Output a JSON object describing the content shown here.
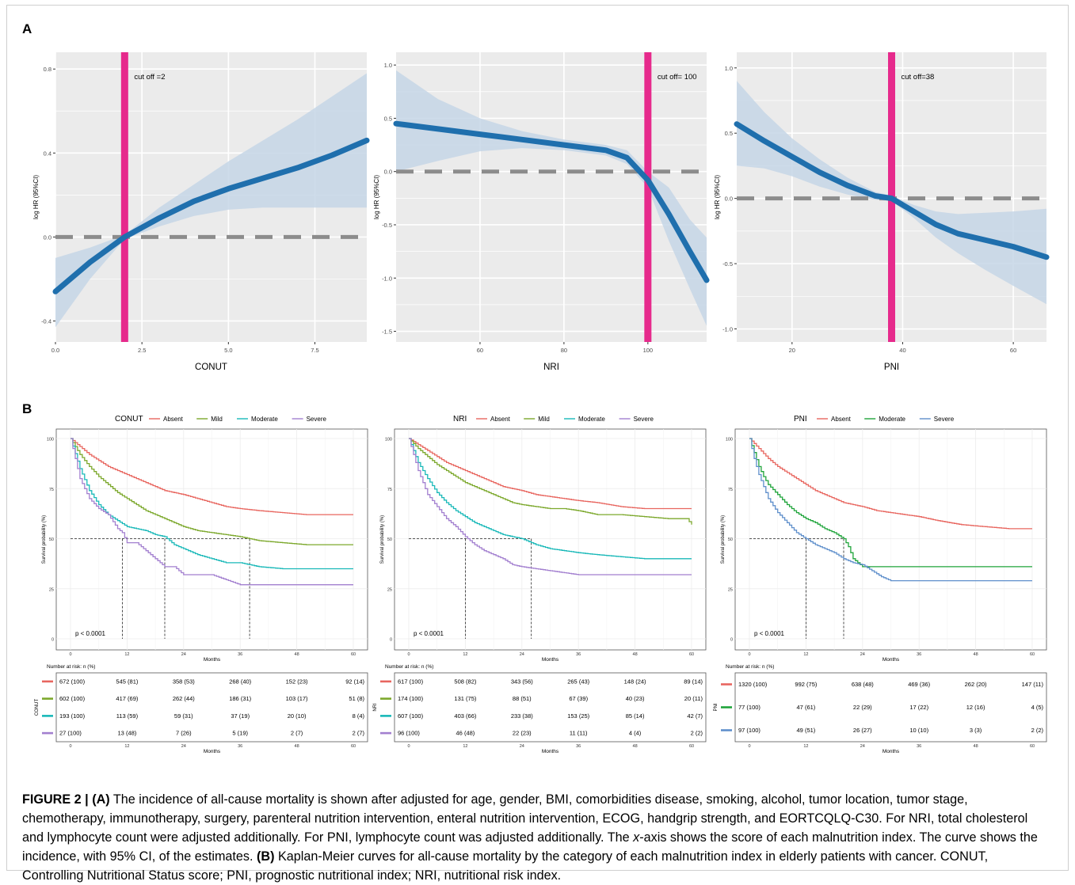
{
  "figure": {
    "panel_a_letter": "A",
    "panel_b_letter": "B",
    "caption_label": "FIGURE 2 |",
    "caption_a_tag": "(A)",
    "caption_text_1": " The incidence of all-cause mortality is shown after adjusted for age, gender, BMI, comorbidities disease, smoking, alcohol, tumor location, tumor stage, chemotherapy, immunotherapy, surgery, parenteral nutrition intervention, enteral nutrition intervention, ECOG, handgrip strength, and EORTCQLQ-C30. For NRI, total cholesterol and lymphocyte count were adjusted additionally. For PNI, lymphocyte count was adjusted additionally. The ",
    "caption_italic": "x",
    "caption_text_2": "-axis shows the score of each malnutrition index. The curve shows the incidence, with 95% CI, of the estimates. ",
    "caption_b_tag": "(B)",
    "caption_text_3": " Kaplan-Meier curves for all-cause mortality by the category of each malnutrition index in elderly patients with cancer. CONUT, Controlling Nutritional Status score; PNI, prognostic nutritional index; NRI, nutritional risk index."
  },
  "colors": {
    "panel_bg": "#ebebeb",
    "spline": "#1f6fad",
    "ci_band": "#c6d6e6",
    "cutoff": "#e62a8c",
    "reference": "#8c8c8c",
    "absent": "#e8665f",
    "mild": "#7ca82c",
    "moderate": "#18b8b8",
    "moderate_pni": "#1fa43a",
    "severe": "#a27fcf",
    "severe_pni": "#5f8fcb"
  },
  "chart_data": [
    {
      "type": "line",
      "panel": "A",
      "xlabel": "CONUT",
      "ylabel": "log HR (95%CI)",
      "xlim": [
        0,
        9
      ],
      "ylim": [
        -0.5,
        0.88
      ],
      "xticks": [
        0,
        2.5,
        5,
        7.5
      ],
      "xtick_labels": [
        "0.0",
        "2.5",
        "5.0",
        "7.5"
      ],
      "yticks": [
        -0.4,
        0,
        0.4,
        0.8
      ],
      "ytick_labels": [
        "-0.4",
        "0.0",
        "0.4",
        "0.8"
      ],
      "cutoff_x": 2,
      "cutoff_label": "cut off =2",
      "reference_y": 0,
      "series": [
        {
          "x": [
            0,
            1,
            2,
            3,
            4,
            5,
            6,
            7,
            8,
            9
          ],
          "y": [
            -0.26,
            -0.12,
            0.0,
            0.09,
            0.17,
            0.23,
            0.28,
            0.33,
            0.39,
            0.46
          ],
          "lower": [
            -0.43,
            -0.2,
            -0.01,
            0.05,
            0.1,
            0.13,
            0.14,
            0.14,
            0.14,
            0.14
          ],
          "upper": [
            -0.1,
            -0.05,
            0.01,
            0.14,
            0.25,
            0.36,
            0.46,
            0.56,
            0.67,
            0.78
          ]
        }
      ]
    },
    {
      "type": "line",
      "panel": "A",
      "xlabel": "NRI",
      "ylabel": "log HR (95%CI)",
      "xlim": [
        40,
        114
      ],
      "ylim": [
        -1.6,
        1.12
      ],
      "xticks": [
        60,
        80,
        100
      ],
      "xtick_labels": [
        "60",
        "80",
        "100"
      ],
      "yticks": [
        -1.5,
        -1.0,
        -0.5,
        0,
        0.5,
        1.0
      ],
      "ytick_labels": [
        "-1.5",
        "-1.0",
        "-0.5",
        "0.0",
        "0.5",
        "1.0"
      ],
      "cutoff_x": 100,
      "cutoff_label": "cut off= 100",
      "reference_y": 0,
      "series": [
        {
          "x": [
            40,
            50,
            60,
            70,
            80,
            90,
            95,
            100,
            105,
            110,
            114
          ],
          "y": [
            0.45,
            0.4,
            0.35,
            0.3,
            0.25,
            0.2,
            0.13,
            -0.08,
            -0.4,
            -0.75,
            -1.02
          ],
          "lower": [
            0.0,
            0.1,
            0.19,
            0.22,
            0.2,
            0.15,
            0.07,
            -0.15,
            -0.65,
            -1.1,
            -1.45
          ],
          "upper": [
            0.95,
            0.68,
            0.5,
            0.38,
            0.3,
            0.25,
            0.2,
            0.0,
            -0.15,
            -0.45,
            -0.62
          ]
        }
      ]
    },
    {
      "type": "line",
      "panel": "A",
      "xlabel": "PNI",
      "ylabel": "log HR (95%CI)",
      "xlim": [
        10,
        66
      ],
      "ylim": [
        -1.1,
        1.12
      ],
      "xticks": [
        20,
        40,
        60
      ],
      "xtick_labels": [
        "20",
        "40",
        "60"
      ],
      "yticks": [
        -1.0,
        -0.5,
        0,
        0.5,
        1.0
      ],
      "ytick_labels": [
        "-1.0",
        "-0.5",
        "0.0",
        "0.5",
        "1.0"
      ],
      "cutoff_x": 38,
      "cutoff_label": "cut off=38",
      "reference_y": 0,
      "series": [
        {
          "x": [
            10,
            15,
            20,
            25,
            30,
            35,
            38,
            42,
            46,
            50,
            55,
            60,
            66
          ],
          "y": [
            0.57,
            0.44,
            0.32,
            0.2,
            0.1,
            0.02,
            0.0,
            -0.1,
            -0.2,
            -0.27,
            -0.32,
            -0.37,
            -0.45
          ],
          "lower": [
            0.25,
            0.23,
            0.17,
            0.09,
            0.03,
            -0.01,
            -0.02,
            -0.15,
            -0.3,
            -0.42,
            -0.55,
            -0.67,
            -0.81
          ],
          "upper": [
            0.9,
            0.66,
            0.46,
            0.3,
            0.16,
            0.05,
            0.02,
            -0.05,
            -0.1,
            -0.12,
            -0.11,
            -0.1,
            -0.08
          ]
        }
      ]
    },
    {
      "type": "line",
      "panel": "B",
      "legend_title": "CONUT",
      "xlabel": "Months",
      "ylabel": "Survival probability (%)",
      "xlim": [
        0,
        60
      ],
      "ylim": [
        0,
        100
      ],
      "xticks": [
        0,
        12,
        24,
        36,
        48,
        60
      ],
      "yticks": [
        0,
        25,
        50,
        75,
        100
      ],
      "pvalue": "p < 0.0001",
      "medians": [
        11,
        20,
        38
      ],
      "series": [
        {
          "name": "Absent",
          "color_key": "absent",
          "x": [
            0,
            2,
            4,
            6,
            8,
            10,
            12,
            14,
            16,
            18,
            20,
            22,
            24,
            27,
            30,
            33,
            36,
            40,
            45,
            50,
            55,
            60
          ],
          "y": [
            100,
            96,
            92,
            89,
            86,
            84,
            82,
            80,
            78,
            76,
            74,
            73,
            72,
            70,
            68,
            66,
            65,
            64,
            63,
            62,
            62,
            62
          ]
        },
        {
          "name": "Mild",
          "color_key": "mild",
          "x": [
            0,
            2,
            4,
            6,
            8,
            10,
            12,
            14,
            16,
            18,
            20,
            22,
            24,
            27,
            30,
            33,
            36,
            40,
            45,
            50,
            55,
            60
          ],
          "y": [
            100,
            92,
            86,
            81,
            77,
            73,
            70,
            67,
            64,
            62,
            60,
            58,
            56,
            54,
            53,
            52,
            51,
            49,
            48,
            47,
            47,
            47
          ]
        },
        {
          "name": "Moderate",
          "color_key": "moderate",
          "x": [
            0,
            2,
            4,
            6,
            8,
            10,
            12,
            14,
            16,
            18,
            20,
            22,
            24,
            27,
            30,
            33,
            36,
            40,
            45,
            50,
            55,
            60
          ],
          "y": [
            100,
            85,
            74,
            67,
            62,
            59,
            56,
            55,
            54,
            52,
            51,
            47,
            45,
            42,
            40,
            38,
            38,
            36,
            35,
            35,
            35,
            35
          ]
        },
        {
          "name": "Severe",
          "color_key": "severe",
          "x": [
            0,
            1,
            2,
            3,
            4,
            6,
            8,
            10,
            11,
            12,
            14,
            16,
            18,
            20,
            22,
            24,
            27,
            30,
            36,
            40,
            48,
            60
          ],
          "y": [
            100,
            90,
            80,
            75,
            70,
            65,
            62,
            55,
            53,
            48,
            48,
            44,
            40,
            36,
            36,
            32,
            32,
            32,
            27,
            27,
            27,
            27
          ]
        }
      ]
    },
    {
      "type": "line",
      "panel": "B",
      "legend_title": "NRI",
      "xlabel": "Months",
      "ylabel": "Survival probability (%)",
      "xlim": [
        0,
        60
      ],
      "ylim": [
        0,
        100
      ],
      "xticks": [
        0,
        12,
        24,
        36,
        48,
        60
      ],
      "yticks": [
        0,
        25,
        50,
        75,
        100
      ],
      "pvalue": "p < 0.0001",
      "medians": [
        12,
        26
      ],
      "series": [
        {
          "name": "Absent",
          "color_key": "absent",
          "x": [
            0,
            2,
            4,
            6,
            8,
            10,
            12,
            14,
            16,
            18,
            20,
            22,
            24,
            27,
            30,
            33,
            36,
            40,
            45,
            50,
            55,
            60
          ],
          "y": [
            100,
            97,
            94,
            91,
            88,
            86,
            84,
            82,
            80,
            78,
            76,
            75,
            74,
            72,
            71,
            70,
            69,
            68,
            66,
            65,
            65,
            65
          ]
        },
        {
          "name": "Mild",
          "color_key": "mild",
          "x": [
            0,
            2,
            4,
            6,
            8,
            10,
            12,
            14,
            16,
            18,
            20,
            22,
            24,
            27,
            30,
            33,
            36,
            40,
            45,
            50,
            55,
            59,
            60
          ],
          "y": [
            100,
            95,
            91,
            87,
            84,
            81,
            78,
            76,
            74,
            72,
            70,
            68,
            67,
            66,
            65,
            65,
            64,
            62,
            62,
            61,
            60,
            60,
            57
          ]
        },
        {
          "name": "Moderate",
          "color_key": "moderate",
          "x": [
            0,
            2,
            4,
            6,
            8,
            10,
            12,
            14,
            16,
            18,
            20,
            22,
            24,
            27,
            30,
            33,
            36,
            40,
            45,
            50,
            55,
            60
          ],
          "y": [
            100,
            88,
            80,
            73,
            68,
            64,
            61,
            58,
            56,
            54,
            52,
            51,
            50,
            47,
            45,
            44,
            43,
            42,
            41,
            40,
            40,
            40
          ]
        },
        {
          "name": "Severe",
          "color_key": "severe",
          "x": [
            0,
            1,
            2,
            3,
            4,
            6,
            8,
            10,
            12,
            14,
            16,
            18,
            20,
            22,
            24,
            27,
            30,
            33,
            36,
            40,
            48,
            60
          ],
          "y": [
            100,
            92,
            84,
            78,
            72,
            66,
            60,
            56,
            51,
            47,
            44,
            42,
            40,
            37,
            36,
            35,
            34,
            33,
            32,
            32,
            32,
            32
          ]
        }
      ]
    },
    {
      "type": "line",
      "panel": "B",
      "legend_title": "PNI",
      "xlabel": "Months",
      "ylabel": "Survival probability (%)",
      "xlim": [
        0,
        60
      ],
      "ylim": [
        0,
        100
      ],
      "xticks": [
        0,
        12,
        24,
        36,
        48,
        60
      ],
      "yticks": [
        0,
        25,
        50,
        75,
        100
      ],
      "pvalue": "p < 0.0001",
      "medians": [
        12,
        20
      ],
      "series": [
        {
          "name": "Absent",
          "color_key": "absent",
          "x": [
            0,
            2,
            4,
            6,
            8,
            10,
            12,
            14,
            16,
            18,
            20,
            22,
            24,
            27,
            30,
            33,
            36,
            40,
            45,
            50,
            55,
            60
          ],
          "y": [
            100,
            95,
            90,
            86,
            83,
            80,
            77,
            74,
            72,
            70,
            68,
            67,
            66,
            64,
            63,
            62,
            61,
            59,
            57,
            56,
            55,
            55
          ]
        },
        {
          "name": "Moderate",
          "color_key": "moderate_pni",
          "x": [
            0,
            1,
            2,
            3,
            4,
            6,
            8,
            10,
            12,
            14,
            16,
            18,
            20,
            21,
            22,
            24,
            30,
            36,
            42,
            48,
            54,
            60
          ],
          "y": [
            100,
            93,
            86,
            81,
            77,
            72,
            67,
            63,
            60,
            58,
            55,
            53,
            50,
            46,
            40,
            36,
            36,
            36,
            36,
            36,
            36,
            36
          ]
        },
        {
          "name": "Severe",
          "color_key": "severe_pni",
          "x": [
            0,
            1,
            2,
            3,
            4,
            6,
            8,
            10,
            12,
            14,
            16,
            18,
            20,
            22,
            24,
            26,
            28,
            30,
            36,
            42,
            48,
            60
          ],
          "y": [
            100,
            90,
            82,
            76,
            70,
            63,
            58,
            53,
            50,
            47,
            45,
            43,
            40,
            38,
            37,
            34,
            31,
            29,
            29,
            29,
            29,
            29
          ]
        }
      ]
    }
  ],
  "risk_tables": [
    {
      "title": "Number at risk: n (%)",
      "ylabel": "CONUT",
      "xlabel": "Months",
      "xticks": [
        "0",
        "12",
        "24",
        "36",
        "48",
        "60"
      ],
      "rows": [
        [
          "672 (100)",
          "545 (81)",
          "358 (53)",
          "268 (40)",
          "152 (23)",
          "92 (14)"
        ],
        [
          "602 (100)",
          "417 (69)",
          "262 (44)",
          "186 (31)",
          "103 (17)",
          "51 (8)"
        ],
        [
          "193 (100)",
          "113 (59)",
          "59 (31)",
          "37 (19)",
          "20 (10)",
          "8 (4)"
        ],
        [
          "27 (100)",
          "13 (48)",
          "7 (26)",
          "5 (19)",
          "2 (7)",
          "2 (7)"
        ]
      ]
    },
    {
      "title": "Number at risk: n (%)",
      "ylabel": "NRI",
      "xlabel": "Months",
      "xticks": [
        "0",
        "12",
        "24",
        "36",
        "48",
        "60"
      ],
      "rows": [
        [
          "617 (100)",
          "508 (82)",
          "343 (56)",
          "265 (43)",
          "148 (24)",
          "89 (14)"
        ],
        [
          "174 (100)",
          "131 (75)",
          "88 (51)",
          "67 (39)",
          "40 (23)",
          "20 (11)"
        ],
        [
          "607 (100)",
          "403 (66)",
          "233 (38)",
          "153 (25)",
          "85 (14)",
          "42 (7)"
        ],
        [
          "96 (100)",
          "46 (48)",
          "22 (23)",
          "11 (11)",
          "4 (4)",
          "2 (2)"
        ]
      ]
    },
    {
      "title": "Number at risk: n (%)",
      "ylabel": "PNI",
      "xlabel": "Months",
      "xticks": [
        "0",
        "12",
        "24",
        "36",
        "48",
        "60"
      ],
      "rows": [
        [
          "1320 (100)",
          "992 (75)",
          "638 (48)",
          "469 (36)",
          "262 (20)",
          "147 (11)"
        ],
        [
          "77 (100)",
          "47 (61)",
          "22 (29)",
          "17 (22)",
          "12 (16)",
          "4 (5)"
        ],
        [
          "97 (100)",
          "49 (51)",
          "26 (27)",
          "10 (10)",
          "3 (3)",
          "2 (2)"
        ]
      ]
    }
  ]
}
